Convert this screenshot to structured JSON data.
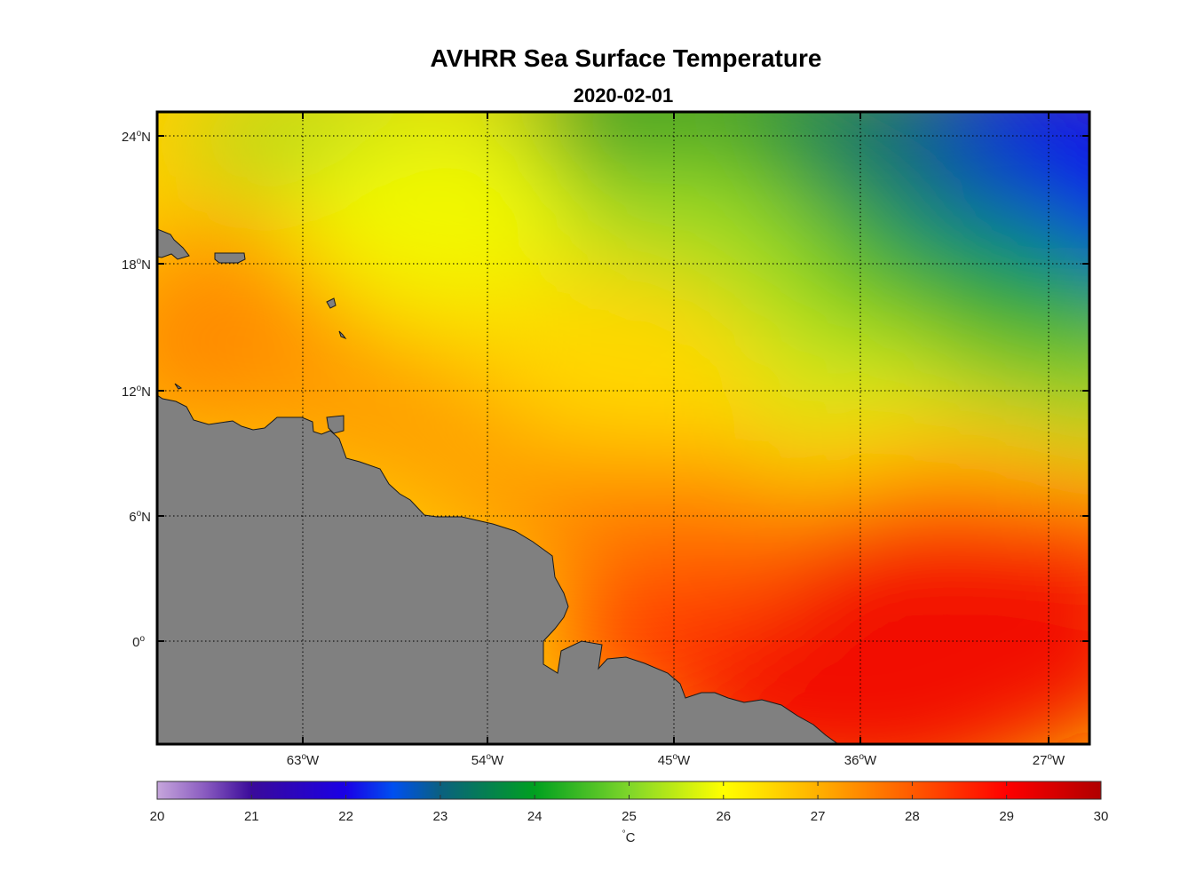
{
  "title": "AVHRR Sea Surface Temperature",
  "subtitle": "2020-02-01",
  "lon_labels": [
    {
      "value": -63,
      "deg": "63",
      "hemi": "W"
    },
    {
      "value": -54,
      "deg": "54",
      "hemi": "W"
    },
    {
      "value": -45,
      "deg": "45",
      "hemi": "W"
    },
    {
      "value": -36,
      "deg": "36",
      "hemi": "W"
    },
    {
      "value": -27,
      "deg": "27",
      "hemi": "W"
    }
  ],
  "lat_labels": [
    {
      "value": 24,
      "deg": "24",
      "hemi": "N"
    },
    {
      "value": 18,
      "deg": "18",
      "hemi": "N"
    },
    {
      "value": 12,
      "deg": "12",
      "hemi": "N"
    },
    {
      "value": 6,
      "deg": "6",
      "hemi": "N"
    },
    {
      "value": 0,
      "deg": "0",
      "hemi": ""
    }
  ],
  "colorbar": {
    "ticks": [
      "20",
      "21",
      "22",
      "23",
      "24",
      "25",
      "26",
      "27",
      "28",
      "29",
      "30"
    ],
    "min": 20,
    "max": 30,
    "unit": "°C",
    "unit_deg": "°",
    "unit_letter": "C"
  },
  "colors": {
    "land": "#808080",
    "grid": "#000000"
  },
  "chart_data": {
    "type": "heatmap",
    "title": "AVHRR Sea Surface Temperature",
    "subtitle": "2020-02-01",
    "variable": "Sea Surface Temperature",
    "unit": "°C",
    "xlabel": "",
    "ylabel": "",
    "x_ticks": [
      "63°W",
      "54°W",
      "45°W",
      "36°W",
      "27°W"
    ],
    "y_ticks": [
      "24°N",
      "18°N",
      "12°N",
      "6°N",
      "0°"
    ],
    "xlim": [
      -70,
      -25
    ],
    "ylim": [
      -5,
      25
    ],
    "color_range": [
      20,
      30
    ],
    "grid": true,
    "legend": "colorbar-bottom",
    "sample_values": [
      {
        "lon": -65,
        "lat": 16,
        "sst": 27.2
      },
      {
        "lon": -55,
        "lat": 20,
        "sst": 26.0
      },
      {
        "lon": -45,
        "lat": 24,
        "sst": 24.2
      },
      {
        "lon": -30,
        "lat": 22,
        "sst": 22.0
      },
      {
        "lon": -30,
        "lat": 16,
        "sst": 23.8
      },
      {
        "lon": -40,
        "lat": 12,
        "sst": 25.2
      },
      {
        "lon": -50,
        "lat": 10,
        "sst": 26.5
      },
      {
        "lon": -45,
        "lat": 4,
        "sst": 27.8
      },
      {
        "lon": -35,
        "lat": 2,
        "sst": 28.7
      },
      {
        "lon": -30,
        "lat": -3,
        "sst": 28.8
      }
    ]
  }
}
